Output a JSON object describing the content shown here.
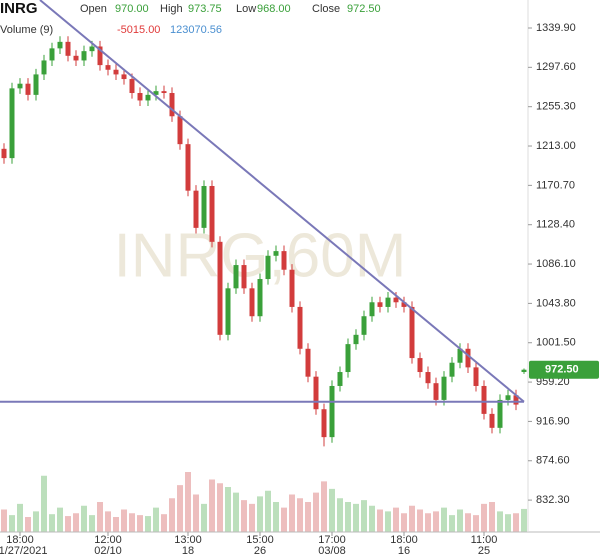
{
  "chart_data": {
    "type": "candlestick",
    "title": "INRG",
    "legend_fields": [
      {
        "label": "Open",
        "value": "970.00"
      },
      {
        "label": "High",
        "value": "973.75"
      },
      {
        "label": "Low",
        "value": "968.00"
      },
      {
        "label": "Close",
        "value": "972.50"
      }
    ],
    "volume_title": "Volume (9)",
    "volume_readouts": [
      {
        "value": "-5015.00",
        "color": "#e03a3a"
      },
      {
        "value": "123070.56",
        "color": "#4a8fd0"
      }
    ],
    "watermark": "INRG,60M",
    "last_price_label": {
      "value": 972.5,
      "label": "972.50"
    },
    "up_color": "#3aa03a",
    "down_color": "#d23c3c",
    "open": [
      1210,
      1200,
      1275,
      1280,
      1268,
      1290,
      1305,
      1318,
      1325,
      1310,
      1305,
      1315,
      1320,
      1300,
      1295,
      1290,
      1285,
      1270,
      1262,
      1268,
      1272,
      1270,
      1245,
      1215,
      1165,
      1125,
      1170,
      1110,
      1010,
      1060,
      1085,
      1060,
      1030,
      1070,
      1095,
      1100,
      1080,
      1040,
      995,
      965,
      930,
      900,
      955,
      970,
      1000,
      1010,
      1030,
      1045,
      1040,
      1050,
      1045,
      1040,
      985,
      970,
      958,
      940,
      965,
      980,
      995,
      975,
      955,
      925,
      910,
      940,
      945,
      970
    ],
    "high": [
      1216,
      1281,
      1286,
      1286,
      1296,
      1311,
      1324,
      1331,
      1331,
      1316,
      1321,
      1326,
      1326,
      1306,
      1301,
      1296,
      1291,
      1276,
      1274,
      1278,
      1278,
      1276,
      1251,
      1221,
      1171,
      1176,
      1176,
      1116,
      1066,
      1091,
      1091,
      1066,
      1076,
      1101,
      1106,
      1106,
      1086,
      1046,
      1001,
      971,
      936,
      961,
      976,
      1006,
      1016,
      1036,
      1051,
      1051,
      1056,
      1056,
      1051,
      1046,
      991,
      976,
      964,
      971,
      986,
      1001,
      1001,
      981,
      961,
      931,
      946,
      951,
      951,
      973.75
    ],
    "low": [
      1194,
      1194,
      1269,
      1262,
      1262,
      1284,
      1299,
      1312,
      1304,
      1299,
      1299,
      1309,
      1294,
      1289,
      1284,
      1279,
      1264,
      1256,
      1256,
      1262,
      1264,
      1239,
      1209,
      1159,
      1119,
      1119,
      1104,
      1004,
      1004,
      1054,
      1054,
      1024,
      1024,
      1064,
      1089,
      1074,
      1034,
      989,
      959,
      924,
      890,
      894,
      949,
      964,
      994,
      1004,
      1024,
      1034,
      1034,
      1039,
      1034,
      979,
      964,
      952,
      934,
      934,
      959,
      974,
      969,
      949,
      919,
      904,
      904,
      934,
      929,
      968
    ],
    "close": [
      1200,
      1275,
      1280,
      1268,
      1290,
      1305,
      1318,
      1325,
      1310,
      1305,
      1315,
      1320,
      1300,
      1295,
      1290,
      1285,
      1270,
      1262,
      1268,
      1272,
      1270,
      1245,
      1215,
      1165,
      1125,
      1170,
      1110,
      1010,
      1060,
      1085,
      1060,
      1030,
      1070,
      1095,
      1100,
      1080,
      1040,
      995,
      965,
      930,
      900,
      955,
      970,
      1000,
      1010,
      1030,
      1045,
      1040,
      1050,
      1045,
      1040,
      985,
      970,
      958,
      940,
      965,
      980,
      995,
      975,
      955,
      925,
      910,
      940,
      945,
      935,
      972.5
    ],
    "volume": [
      120000,
      90000,
      150000,
      80000,
      110000,
      300000,
      95000,
      130000,
      85000,
      100000,
      140000,
      90000,
      160000,
      110000,
      80000,
      120000,
      100000,
      90000,
      85000,
      130000,
      95000,
      180000,
      250000,
      320000,
      200000,
      150000,
      280000,
      260000,
      240000,
      210000,
      170000,
      150000,
      190000,
      220000,
      160000,
      130000,
      200000,
      180000,
      160000,
      210000,
      270000,
      230000,
      180000,
      160000,
      150000,
      170000,
      140000,
      120000,
      110000,
      130000,
      100000,
      140000,
      120000,
      100000,
      110000,
      130000,
      90000,
      120000,
      100000,
      90000,
      150000,
      160000,
      110000,
      95000,
      100000,
      123070
    ],
    "ylim": [
      798,
      1370
    ],
    "yticks": [
      {
        "value": 1339.9,
        "label": "1339.90"
      },
      {
        "value": 1297.6,
        "label": "1297.60"
      },
      {
        "value": 1255.3,
        "label": "1255.30"
      },
      {
        "value": 1213,
        "label": "1213.00"
      },
      {
        "value": 1170.7,
        "label": "1170.70"
      },
      {
        "value": 1128.4,
        "label": "1128.40"
      },
      {
        "value": 1086.1,
        "label": "1086.10"
      },
      {
        "value": 1043.8,
        "label": "1043.80"
      },
      {
        "value": 1001.5,
        "label": "1001.50"
      },
      {
        "value": 959.2,
        "label": "959.20"
      },
      {
        "value": 916.9,
        "label": "916.90"
      },
      {
        "value": 874.6,
        "label": "874.60"
      },
      {
        "value": 832.3,
        "label": "832.30"
      }
    ],
    "xticks": [
      {
        "value": 2,
        "label": "18:00",
        "date": "01/27/2021"
      },
      {
        "value": 13,
        "label": "12:00",
        "date": "02/10"
      },
      {
        "value": 23,
        "label": "13:00",
        "date": "18"
      },
      {
        "value": 32,
        "label": "15:00",
        "date": "26"
      },
      {
        "value": 41,
        "label": "17:00",
        "date": "03/08"
      },
      {
        "value": 50,
        "label": "18:00",
        "date": "16"
      },
      {
        "value": 60,
        "label": "11:00",
        "date": "25"
      }
    ],
    "trendlines": [
      {
        "x": [
          4.5,
          65
        ],
        "y": [
          1370,
          938
        ],
        "color": "#7a78b8"
      },
      {
        "x": [
          -0.5,
          65
        ],
        "y": [
          938,
          938
        ],
        "color": "#7a78b8"
      }
    ]
  }
}
